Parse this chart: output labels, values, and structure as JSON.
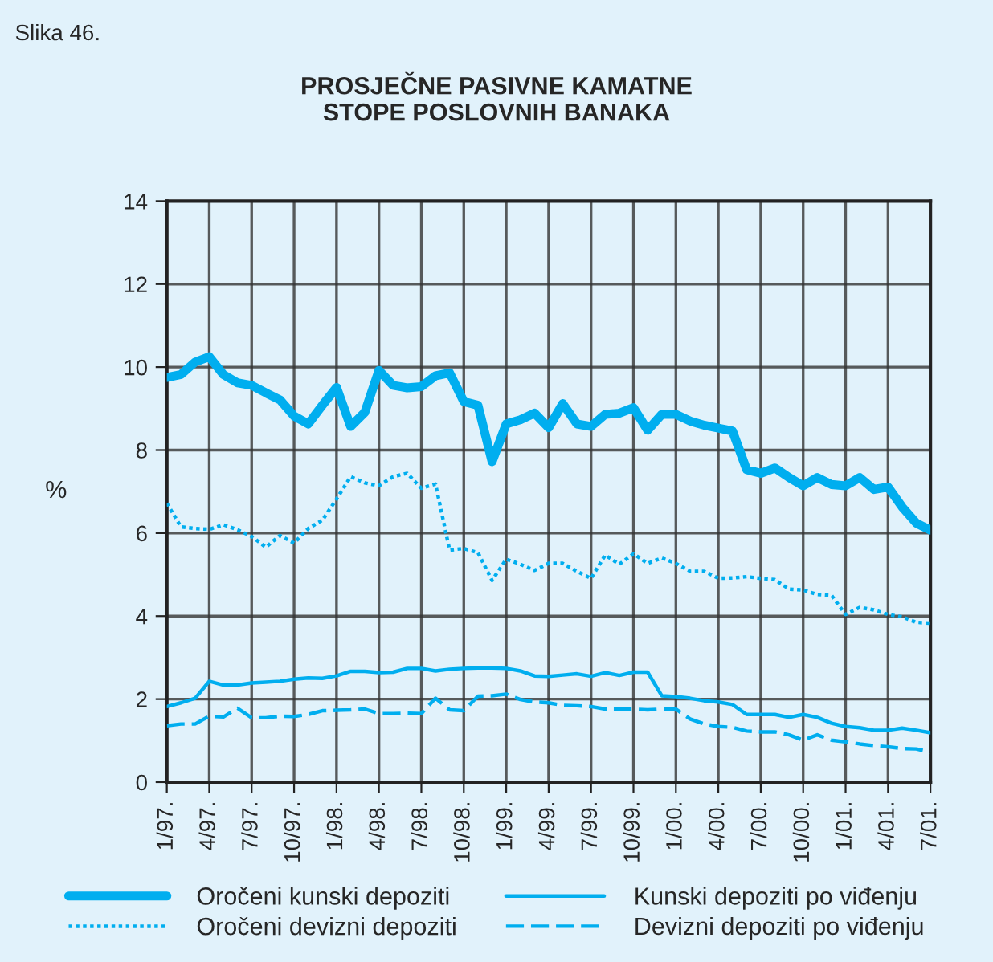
{
  "chart_data": {
    "type": "line",
    "title": "PROSJEČNE PASIVNE KAMATNE\nSTOPE POSLOVNIH BANAKA",
    "ylabel": "%",
    "annotations": [
      "Slika 46."
    ],
    "categories": [
      "1/97.",
      null,
      null,
      "4/97.",
      null,
      null,
      "7/97.",
      null,
      null,
      "10/97.",
      null,
      null,
      "1/98.",
      null,
      null,
      "4/98.",
      null,
      null,
      "7/98.",
      null,
      null,
      "10/98.",
      null,
      null,
      "1/99.",
      null,
      null,
      "4/99.",
      null,
      null,
      "7/99.",
      null,
      null,
      "10/99.",
      null,
      null,
      "1/00.",
      null,
      null,
      "4/00.",
      null,
      null,
      "7/00.",
      null,
      null,
      "10/00.",
      null,
      null,
      "1/01.",
      null,
      null,
      "4/01.",
      null,
      null,
      "7/01."
    ],
    "series": [
      {
        "name": "Oročeni kunski depoziti",
        "color": "#00aeef",
        "line_style": "solid",
        "values": [
          9.75,
          9.82,
          10.12,
          10.25,
          9.82,
          9.62,
          9.56,
          9.38,
          9.21,
          8.82,
          8.63,
          9.08,
          9.51,
          8.57,
          8.91,
          9.92,
          9.56,
          9.5,
          9.53,
          9.79,
          9.86,
          9.17,
          9.08,
          7.72,
          8.63,
          8.73,
          8.89,
          8.54,
          9.12,
          8.63,
          8.57,
          8.86,
          8.89,
          9.02,
          8.48,
          8.86,
          8.86,
          8.7,
          8.6,
          8.53,
          8.46,
          7.53,
          7.44,
          7.57,
          7.34,
          7.14,
          7.34,
          7.17,
          7.14,
          7.34,
          7.05,
          7.11,
          6.63,
          6.24,
          6.07
        ]
      },
      {
        "name": "Oročeni devizni depoziti",
        "color": "#00aeef",
        "line_style": "dotted",
        "values": [
          6.72,
          6.15,
          6.11,
          6.09,
          6.2,
          6.08,
          5.92,
          5.66,
          5.94,
          5.76,
          6.11,
          6.31,
          6.82,
          7.36,
          7.21,
          7.14,
          7.36,
          7.44,
          7.08,
          7.18,
          5.59,
          5.63,
          5.53,
          4.86,
          5.37,
          5.25,
          5.1,
          5.27,
          5.27,
          5.08,
          4.91,
          5.47,
          5.25,
          5.5,
          5.27,
          5.4,
          5.27,
          5.08,
          5.08,
          4.91,
          4.92,
          4.95,
          4.91,
          4.88,
          4.65,
          4.63,
          4.52,
          4.5,
          4.04,
          4.21,
          4.15,
          4.04,
          3.98,
          3.85,
          3.83
        ]
      },
      {
        "name": "Kunski depoziti po viđenju",
        "color": "#00aeef",
        "line_style": "solid",
        "values": [
          1.82,
          1.91,
          2.02,
          2.43,
          2.34,
          2.34,
          2.39,
          2.41,
          2.43,
          2.48,
          2.51,
          2.5,
          2.56,
          2.67,
          2.67,
          2.64,
          2.65,
          2.74,
          2.74,
          2.68,
          2.72,
          2.74,
          2.75,
          2.75,
          2.74,
          2.68,
          2.56,
          2.55,
          2.58,
          2.61,
          2.55,
          2.64,
          2.57,
          2.65,
          2.65,
          2.08,
          2.06,
          2.02,
          1.96,
          1.93,
          1.87,
          1.63,
          1.63,
          1.63,
          1.56,
          1.63,
          1.56,
          1.42,
          1.34,
          1.31,
          1.25,
          1.25,
          1.3,
          1.25,
          1.19
        ]
      },
      {
        "name": "Devizni depoziti po viđenju",
        "color": "#00aeef",
        "line_style": "dashed",
        "values": [
          1.36,
          1.4,
          1.4,
          1.59,
          1.57,
          1.78,
          1.55,
          1.55,
          1.59,
          1.58,
          1.63,
          1.72,
          1.73,
          1.74,
          1.76,
          1.65,
          1.65,
          1.66,
          1.65,
          2.02,
          1.74,
          1.72,
          2.07,
          2.08,
          2.12,
          1.99,
          1.93,
          1.91,
          1.85,
          1.84,
          1.82,
          1.76,
          1.76,
          1.76,
          1.74,
          1.76,
          1.76,
          1.52,
          1.4,
          1.34,
          1.32,
          1.23,
          1.21,
          1.21,
          1.14,
          1.01,
          1.14,
          1.01,
          0.97,
          0.92,
          0.88,
          0.85,
          0.81,
          0.8,
          0.72
        ]
      }
    ],
    "ylim": [
      0,
      14
    ],
    "yticks": [
      0,
      2,
      4,
      6,
      8,
      10,
      12,
      14
    ],
    "grid": true,
    "legend": "bottom",
    "marker": "none"
  }
}
